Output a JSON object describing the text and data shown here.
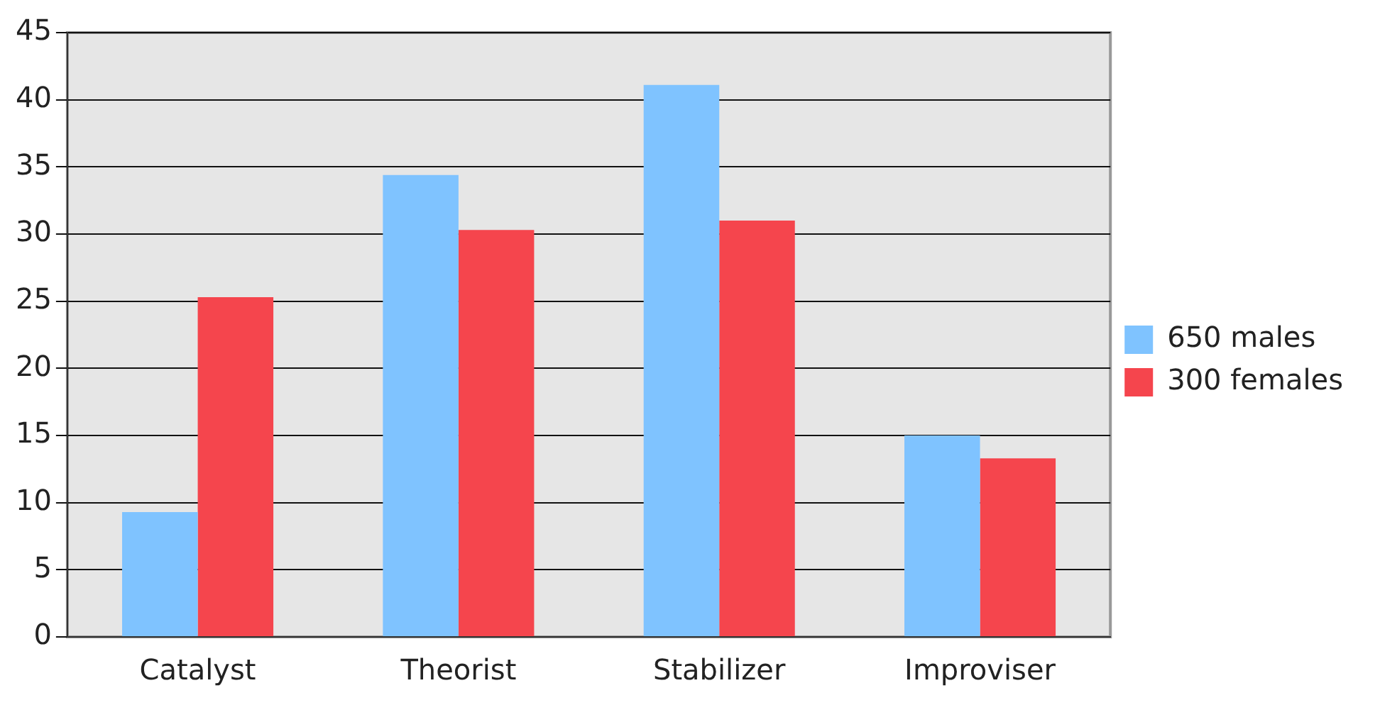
{
  "chart_data": {
    "type": "bar",
    "categories": [
      "Catalyst",
      "Theorist",
      "Stabilizer",
      "Improviser"
    ],
    "series": [
      {
        "name": "650 males",
        "color": "#7fc3ff",
        "values": [
          9.3,
          34.4,
          41.1,
          15.0
        ]
      },
      {
        "name": "300 females",
        "color": "#f5454d",
        "values": [
          25.3,
          30.3,
          31.0,
          13.3
        ]
      }
    ],
    "ylim": [
      0,
      45
    ],
    "yticks": [
      0,
      5,
      10,
      15,
      20,
      25,
      30,
      35,
      40,
      45
    ],
    "grid": "y",
    "legend": "right"
  }
}
